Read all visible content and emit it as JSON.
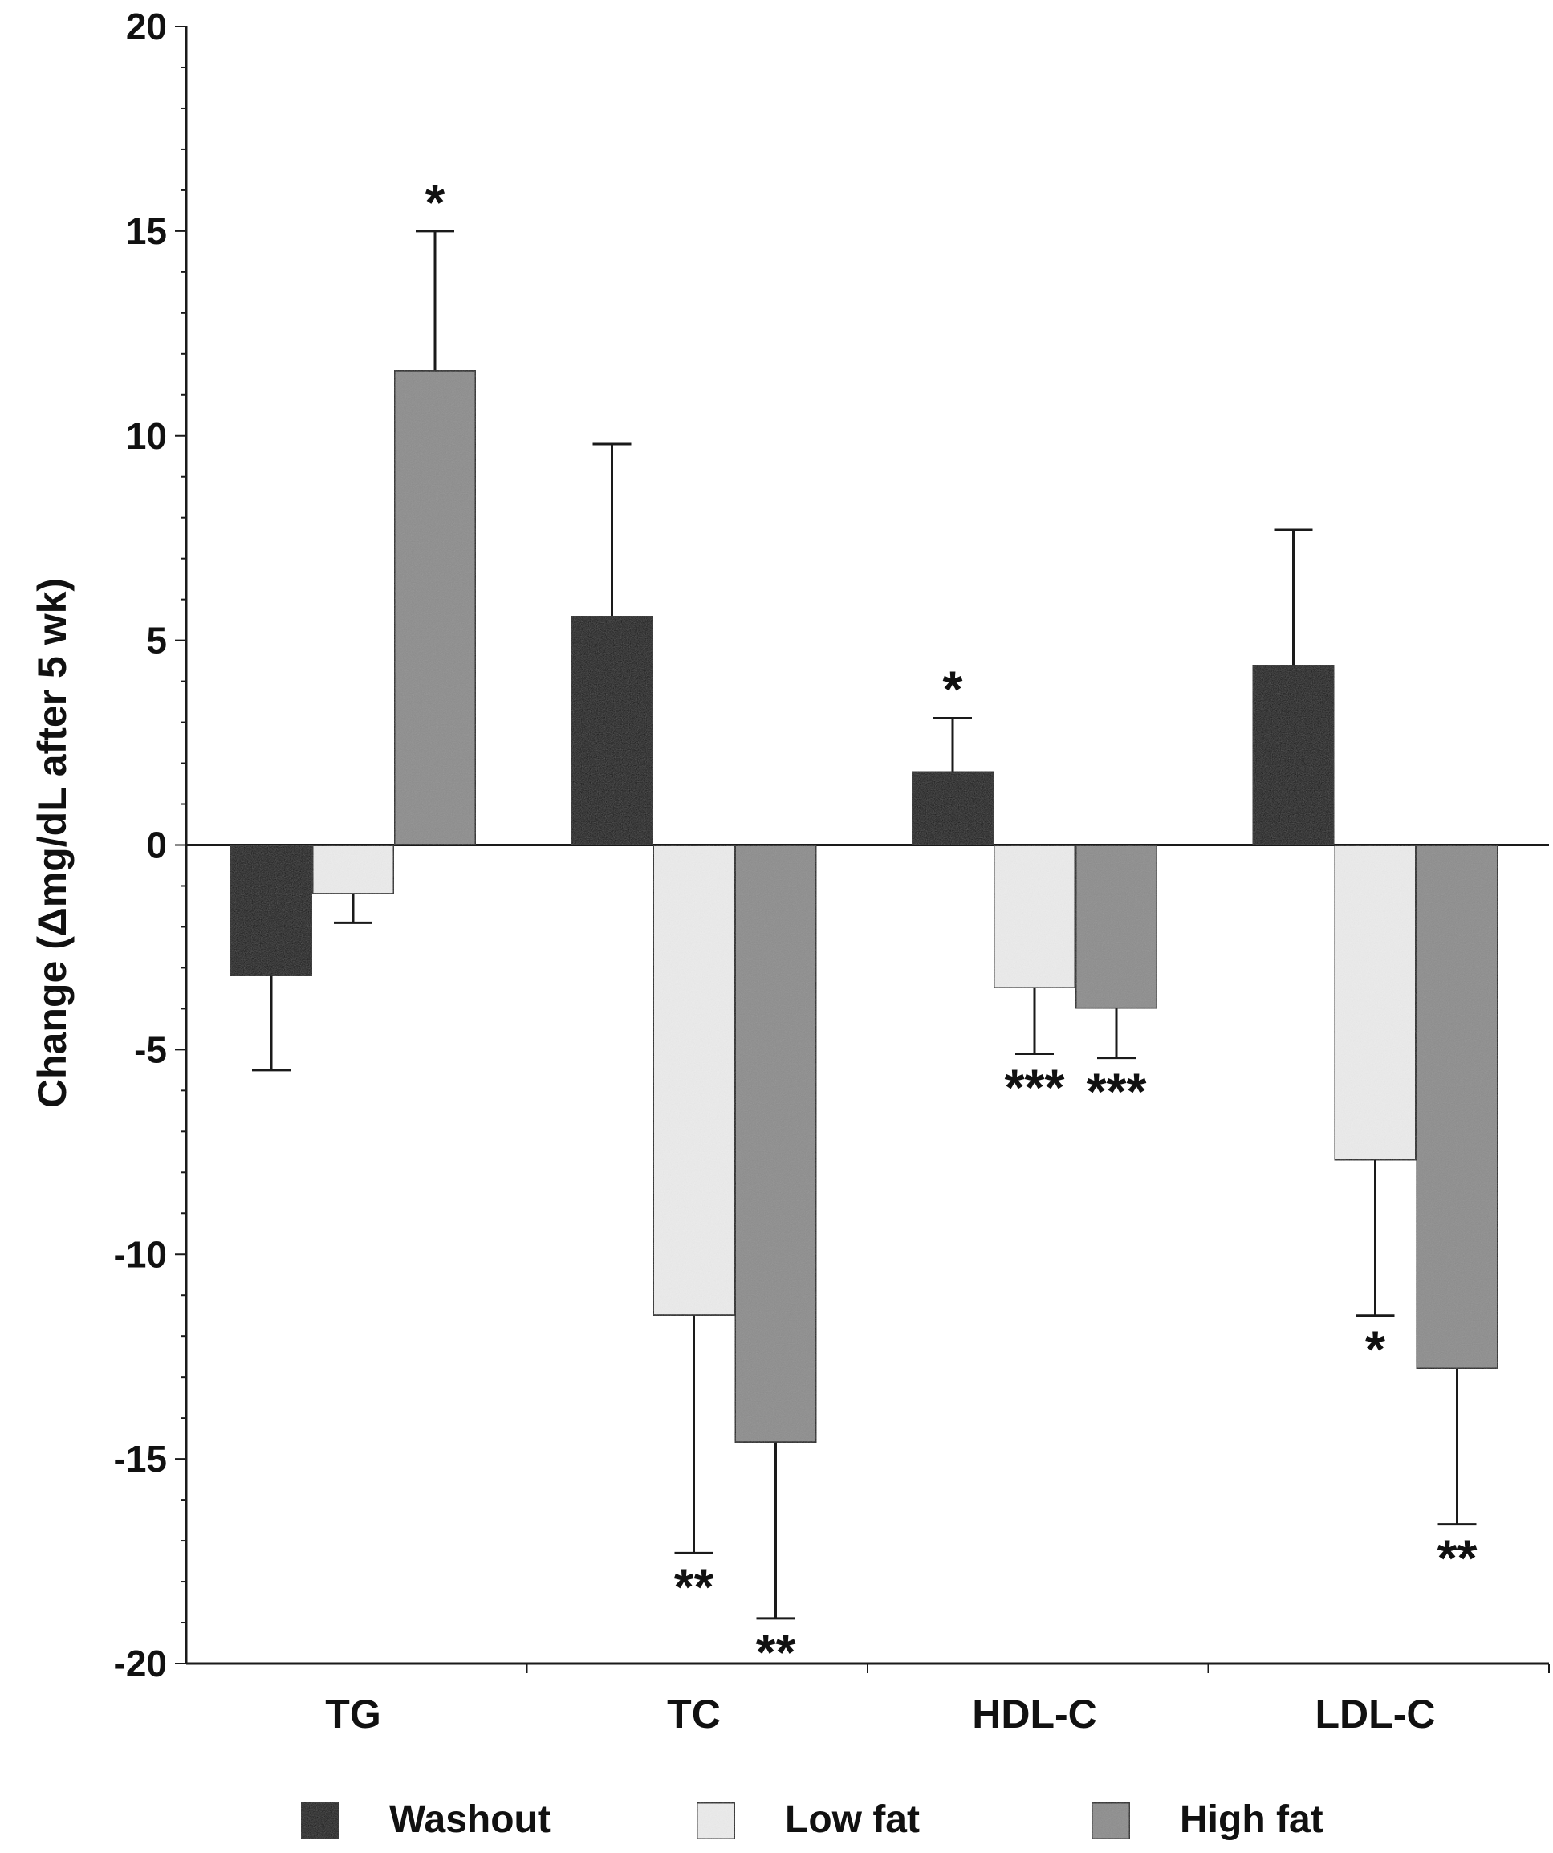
{
  "chart_data": {
    "type": "bar",
    "title": "",
    "xlabel": "",
    "ylabel": "Change (Δmg/dL after 5 wk)",
    "ylim": [
      -20,
      20
    ],
    "yticks": [
      20,
      15,
      10,
      5,
      0,
      -5,
      -10,
      -15,
      -20
    ],
    "ytick_labels": [
      "20",
      "15",
      "10",
      "5",
      "0",
      "-5",
      "-10",
      "-15",
      "-20"
    ],
    "categories": [
      "TG",
      "TC",
      "HDL-C",
      "LDL-C"
    ],
    "legend_position": "bottom",
    "series": [
      {
        "name": "Washout",
        "color": "#111111",
        "values": [
          -3.2,
          5.6,
          1.8,
          4.4
        ],
        "errors": [
          2.3,
          4.2,
          1.3,
          3.3
        ],
        "significance": [
          "",
          "",
          "*",
          ""
        ]
      },
      {
        "name": "Low fat",
        "color": "#ececec",
        "values": [
          -1.2,
          -11.5,
          -3.5,
          -7.7
        ],
        "errors": [
          0.7,
          5.8,
          1.6,
          3.8
        ],
        "significance": [
          "",
          "**",
          "***",
          "*"
        ]
      },
      {
        "name": "High fat",
        "color": "#8c8c8c",
        "values": [
          11.6,
          -14.6,
          -4.0,
          -12.8
        ],
        "errors": [
          3.4,
          4.3,
          1.2,
          3.8
        ],
        "significance": [
          "*",
          "**",
          "***",
          "**"
        ]
      }
    ]
  }
}
